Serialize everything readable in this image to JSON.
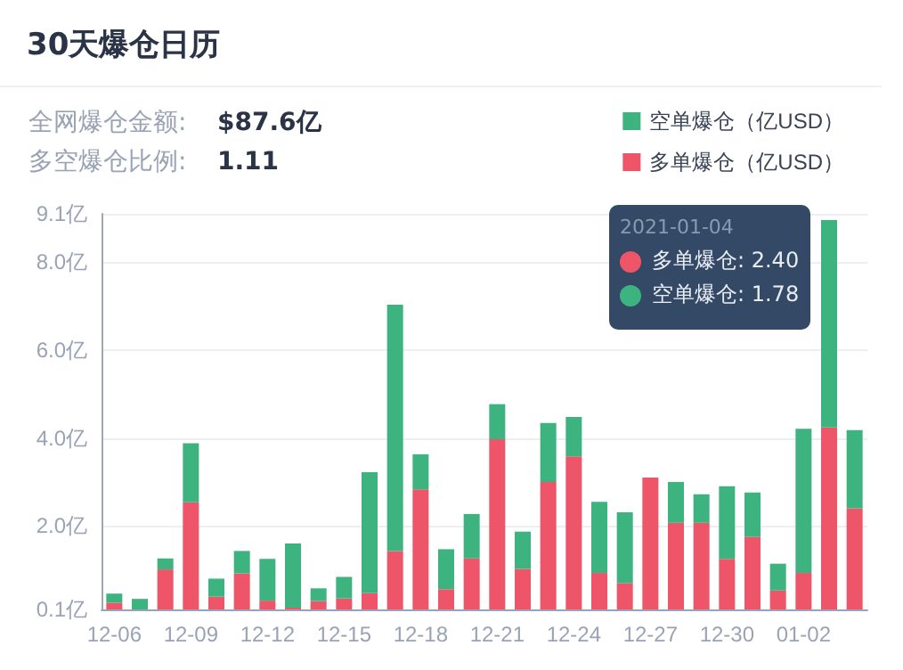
{
  "chart_data": {
    "type": "bar",
    "title": "30天爆仓日历",
    "stacked": true,
    "categories": [
      "12-06",
      null,
      null,
      "12-09",
      null,
      null,
      "12-12",
      null,
      null,
      "12-15",
      null,
      null,
      "12-18",
      null,
      null,
      "12-21",
      null,
      null,
      "12-24",
      null,
      null,
      "12-27",
      null,
      null,
      "12-30",
      null,
      null,
      "01-02",
      null,
      null
    ],
    "series": [
      {
        "name": "多单爆仓（亿USD）",
        "color": "#ee5568",
        "values": [
          0.25,
          null,
          1.01,
          2.54,
          0.39,
          0.92,
          0.3,
          0.14,
          0.29,
          0.35,
          0.47,
          1.43,
          2.83,
          0.56,
          1.26,
          3.97,
          1.02,
          3.0,
          3.58,
          0.93,
          0.7,
          3.1,
          2.07,
          2.07,
          1.25,
          1.75,
          0.53,
          0.93,
          4.24,
          2.4
        ]
      },
      {
        "name": "空单爆仓（亿USD）",
        "color": "#3db480",
        "values": [
          0.21,
          0.34,
          0.25,
          1.34,
          0.41,
          0.51,
          0.95,
          1.46,
          0.29,
          0.49,
          2.75,
          5.6,
          0.8,
          0.91,
          1.01,
          0.8,
          0.85,
          1.34,
          0.9,
          1.62,
          1.61,
          null,
          0.93,
          0.65,
          1.65,
          1.01,
          0.61,
          3.28,
          4.72,
          1.78
        ]
      }
    ],
    "ylim": [
      0.1,
      9.1
    ],
    "yticks": [
      {
        "value": 0.1,
        "label": "0.1亿"
      },
      {
        "value": 2,
        "label": "2.0亿"
      },
      {
        "value": 4,
        "label": "4.0亿"
      },
      {
        "value": 6,
        "label": "6.0亿"
      },
      {
        "value": 8,
        "label": "8.0亿"
      },
      {
        "value": 9.1,
        "label": "9.1亿"
      }
    ],
    "grid": "y",
    "legend": "top right",
    "annotations": [
      "全网爆仓金额:",
      "$87.6亿",
      "多空爆仓比例:",
      "1.11",
      "2021-01-04",
      "多单爆仓: 2.40",
      "空单爆仓: 1.78"
    ]
  }
}
